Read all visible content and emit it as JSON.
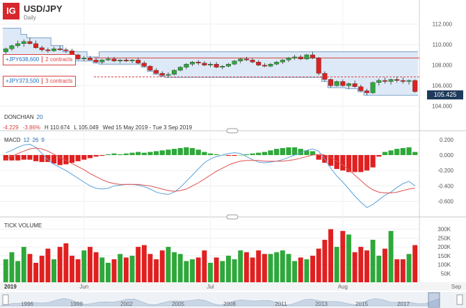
{
  "header": {
    "logo": "IG",
    "symbol": "USD/JPY",
    "timeframe": "Daily"
  },
  "positions": [
    {
      "value": "+JPY638,600",
      "contracts": "2 contracts"
    },
    {
      "value": "+JPY373,500",
      "contracts": "3 contracts"
    }
  ],
  "last_price": "105.425",
  "indicators": {
    "donchian": {
      "name": "DONCHIAN",
      "period": "20",
      "change": "-4.229",
      "change_pct": "-3.86%",
      "high": "H 110.674",
      "low": "L 105.049",
      "range": "Wed 15 May 2019 - Tue 3 Sep 2019"
    },
    "macd": {
      "name": "MACD",
      "p1": "12",
      "p2": "26",
      "p3": "9"
    },
    "volume": {
      "name": "TICK VOLUME"
    }
  },
  "axes": {
    "price_ticks": [
      "112.000",
      "110.000",
      "108.000",
      "106.000",
      "104.000"
    ],
    "macd_ticks": [
      "0.200",
      "0.000",
      "-0.200",
      "-0.400",
      "-0.600"
    ],
    "volume_ticks": [
      "300K",
      "250K",
      "200K",
      "150K",
      "100K",
      "50K"
    ],
    "time_labels": [
      "2019",
      "Jun",
      "Jul",
      "Aug",
      "Sep"
    ],
    "navigator_years": [
      "1996",
      "1999",
      "2002",
      "2005",
      "2008",
      "2011",
      "2013",
      "2015",
      "2017"
    ]
  },
  "colors": {
    "up": "#2ea83a",
    "down": "#e02020",
    "band_fill": "#dde9f6",
    "band_line": "#7aa0c8",
    "macd_line": "#5aa0d8",
    "signal_line": "#e05050",
    "position_line": "#d94040",
    "last_price_bg": "#1e3a5c"
  },
  "chart_data": [
    {
      "type": "candlestick",
      "title": "USD/JPY",
      "x": [
        "2019-05-15",
        "2019-09-03"
      ],
      "ylim": [
        103.5,
        113.0
      ],
      "ohlc": [
        [
          109.3,
          109.7,
          109.1,
          109.6
        ],
        [
          109.6,
          110.0,
          109.4,
          109.9
        ],
        [
          109.9,
          110.4,
          109.7,
          110.1
        ],
        [
          110.1,
          110.5,
          109.8,
          110.3
        ],
        [
          110.3,
          110.67,
          110.0,
          110.1
        ],
        [
          110.1,
          110.4,
          109.6,
          109.7
        ],
        [
          109.7,
          109.9,
          109.3,
          109.5
        ],
        [
          109.5,
          109.7,
          109.2,
          109.4
        ],
        [
          109.4,
          109.8,
          109.3,
          109.6
        ],
        [
          109.6,
          109.9,
          109.4,
          109.5
        ],
        [
          109.5,
          109.7,
          109.2,
          109.4
        ],
        [
          109.4,
          109.6,
          108.9,
          109.0
        ],
        [
          109.0,
          109.1,
          108.5,
          108.6
        ],
        [
          108.6,
          108.9,
          108.4,
          108.7
        ],
        [
          108.7,
          108.9,
          108.5,
          108.5
        ],
        [
          108.5,
          108.7,
          108.2,
          108.3
        ],
        [
          108.3,
          108.6,
          108.1,
          108.5
        ],
        [
          108.5,
          108.8,
          108.4,
          108.6
        ],
        [
          108.6,
          108.8,
          108.3,
          108.4
        ],
        [
          108.4,
          108.6,
          108.2,
          108.5
        ],
        [
          108.5,
          108.7,
          108.3,
          108.4
        ],
        [
          108.4,
          108.6,
          108.2,
          108.5
        ],
        [
          108.5,
          108.7,
          108.1,
          108.2
        ],
        [
          108.2,
          108.4,
          107.8,
          107.9
        ],
        [
          107.9,
          108.0,
          107.4,
          107.5
        ],
        [
          107.5,
          107.7,
          107.1,
          107.2
        ],
        [
          107.2,
          107.4,
          106.9,
          107.0
        ],
        [
          107.0,
          107.3,
          106.8,
          107.1
        ],
        [
          107.1,
          107.6,
          107.0,
          107.5
        ],
        [
          107.5,
          107.9,
          107.4,
          107.8
        ],
        [
          107.8,
          108.2,
          107.6,
          108.1
        ],
        [
          108.1,
          108.4,
          107.9,
          108.3
        ],
        [
          108.3,
          108.5,
          108.0,
          108.2
        ],
        [
          108.2,
          108.4,
          107.9,
          108.0
        ],
        [
          108.0,
          108.3,
          107.8,
          108.1
        ],
        [
          108.1,
          108.3,
          107.7,
          107.8
        ],
        [
          107.8,
          108.0,
          107.6,
          107.9
        ],
        [
          107.9,
          108.2,
          107.8,
          108.1
        ],
        [
          108.1,
          108.5,
          108.0,
          108.4
        ],
        [
          108.4,
          108.7,
          108.2,
          108.6
        ],
        [
          108.6,
          108.8,
          108.4,
          108.5
        ],
        [
          108.5,
          108.7,
          108.2,
          108.3
        ],
        [
          108.3,
          108.5,
          107.9,
          108.0
        ],
        [
          108.0,
          108.2,
          107.8,
          107.9
        ],
        [
          107.9,
          108.2,
          107.8,
          108.1
        ],
        [
          108.1,
          108.4,
          108.0,
          108.3
        ],
        [
          108.3,
          108.6,
          108.1,
          108.5
        ],
        [
          108.5,
          108.8,
          108.3,
          108.7
        ],
        [
          108.7,
          109.0,
          108.5,
          108.8
        ],
        [
          108.8,
          109.0,
          108.5,
          108.6
        ],
        [
          108.6,
          109.1,
          108.5,
          109.0
        ],
        [
          109.0,
          109.3,
          108.6,
          108.7
        ],
        [
          108.7,
          108.8,
          107.0,
          107.2
        ],
        [
          107.2,
          107.4,
          106.4,
          106.6
        ],
        [
          106.6,
          106.7,
          105.8,
          106.0
        ],
        [
          106.0,
          106.5,
          105.9,
          106.4
        ],
        [
          106.4,
          106.6,
          105.9,
          106.0
        ],
        [
          106.0,
          106.3,
          105.7,
          106.2
        ],
        [
          106.2,
          106.5,
          105.8,
          105.9
        ],
        [
          105.9,
          106.1,
          105.4,
          105.5
        ],
        [
          105.5,
          105.7,
          105.05,
          105.3
        ],
        [
          105.3,
          106.4,
          105.2,
          106.3
        ],
        [
          106.3,
          106.7,
          106.0,
          106.5
        ],
        [
          106.5,
          106.8,
          106.2,
          106.4
        ],
        [
          106.4,
          106.7,
          106.1,
          106.6
        ],
        [
          106.6,
          106.9,
          106.3,
          106.5
        ],
        [
          106.5,
          106.8,
          106.2,
          106.4
        ],
        [
          106.4,
          106.6,
          106.1,
          106.5
        ],
        [
          106.5,
          106.6,
          105.3,
          105.425
        ]
      ],
      "donchian": {
        "upper": [
          111.6,
          111.6,
          111.6,
          111.0,
          110.67,
          110.67,
          110.67,
          110.67,
          109.9,
          109.9,
          109.3,
          109.3,
          109.3,
          109.3,
          108.8,
          108.8,
          109.3,
          109.3,
          109.3,
          109.3,
          109.3,
          109.3,
          109.3,
          109.3,
          109.3,
          109.3,
          109.3,
          109.3,
          109.3,
          109.3,
          109.3,
          109.3,
          109.3,
          109.3,
          109.3,
          109.3,
          109.3,
          109.3,
          109.3,
          109.3,
          109.3,
          109.3,
          109.3,
          109.3,
          109.3,
          109.3,
          109.3,
          109.3,
          109.3,
          109.3,
          109.3,
          109.3,
          109.3,
          109.3,
          109.3,
          109.3,
          109.3,
          109.3,
          109.3,
          109.3,
          109.3,
          109.3,
          109.3,
          109.3,
          109.3,
          109.3,
          109.3,
          109.3,
          109.3
        ],
        "lower": [
          109.0,
          109.0,
          109.0,
          109.0,
          109.0,
          109.0,
          109.0,
          109.0,
          109.0,
          109.0,
          108.9,
          108.5,
          108.4,
          108.4,
          108.4,
          108.2,
          108.1,
          108.1,
          108.1,
          108.1,
          108.1,
          108.1,
          108.1,
          107.8,
          107.4,
          107.1,
          106.9,
          106.8,
          106.8,
          106.8,
          106.8,
          106.8,
          106.8,
          106.8,
          106.8,
          106.8,
          106.8,
          106.8,
          106.8,
          106.8,
          106.8,
          106.8,
          106.8,
          106.8,
          106.8,
          106.8,
          106.8,
          106.8,
          106.8,
          106.8,
          106.8,
          106.8,
          106.8,
          106.4,
          105.8,
          105.8,
          105.8,
          105.7,
          105.7,
          105.4,
          105.05,
          105.05,
          105.05,
          105.05,
          105.05,
          105.05,
          105.05,
          105.05,
          105.05
        ]
      },
      "position_levels": [
        108.7,
        106.85
      ]
    },
    {
      "type": "line",
      "title": "MACD 12 26 9",
      "ylim": [
        -0.72,
        0.27
      ],
      "series": [
        {
          "name": "MACD",
          "values": [
            0.03,
            0.06,
            0.1,
            0.13,
            0.14,
            0.1,
            0.02,
            -0.06,
            -0.12,
            -0.16,
            -0.2,
            -0.25,
            -0.3,
            -0.35,
            -0.4,
            -0.43,
            -0.44,
            -0.43,
            -0.4,
            -0.39,
            -0.38,
            -0.38,
            -0.39,
            -0.41,
            -0.44,
            -0.48,
            -0.5,
            -0.51,
            -0.48,
            -0.42,
            -0.34,
            -0.26,
            -0.18,
            -0.1,
            -0.05,
            -0.02,
            0.0,
            0.02,
            0.03,
            0.02,
            -0.02,
            -0.06,
            -0.09,
            -0.1,
            -0.09,
            -0.08,
            -0.06,
            -0.03,
            0.0,
            0.03,
            0.06,
            0.08,
            0.05,
            -0.05,
            -0.17,
            -0.27,
            -0.35,
            -0.44,
            -0.53,
            -0.61,
            -0.68,
            -0.64,
            -0.58,
            -0.52,
            -0.48,
            -0.42,
            -0.37,
            -0.34,
            -0.4
          ]
        },
        {
          "name": "Signal",
          "values": [
            -0.05,
            -0.02,
            0.02,
            0.05,
            0.08,
            0.09,
            0.08,
            0.05,
            0.01,
            -0.03,
            -0.07,
            -0.11,
            -0.15,
            -0.19,
            -0.24,
            -0.28,
            -0.32,
            -0.35,
            -0.37,
            -0.38,
            -0.38,
            -0.38,
            -0.38,
            -0.39,
            -0.4,
            -0.42,
            -0.44,
            -0.46,
            -0.47,
            -0.46,
            -0.44,
            -0.4,
            -0.36,
            -0.31,
            -0.26,
            -0.21,
            -0.17,
            -0.13,
            -0.1,
            -0.08,
            -0.07,
            -0.07,
            -0.07,
            -0.08,
            -0.08,
            -0.08,
            -0.08,
            -0.07,
            -0.06,
            -0.04,
            -0.02,
            0.0,
            0.01,
            0.0,
            -0.03,
            -0.08,
            -0.13,
            -0.19,
            -0.26,
            -0.33,
            -0.4,
            -0.45,
            -0.48,
            -0.49,
            -0.49,
            -0.48,
            -0.46,
            -0.44,
            -0.43
          ]
        },
        {
          "name": "Histogram",
          "values": [
            -0.07,
            -0.07,
            -0.07,
            -0.06,
            -0.06,
            -0.08,
            -0.09,
            -0.09,
            -0.11,
            -0.13,
            -0.12,
            -0.1,
            -0.08,
            -0.06,
            -0.04,
            -0.02,
            -0.01,
            0.01,
            0.02,
            0.01,
            0.02,
            0.03,
            0.04,
            0.03,
            0.04,
            0.05,
            0.06,
            0.07,
            0.08,
            0.09,
            0.1,
            0.09,
            0.07,
            0.04,
            0.02,
            0.01,
            0.0,
            -0.01,
            -0.01,
            0.0,
            0.01,
            0.02,
            0.03,
            0.04,
            0.06,
            0.08,
            0.09,
            0.1,
            0.1,
            0.08,
            0.06,
            0.05,
            -0.06,
            -0.1,
            -0.14,
            -0.18,
            -0.2,
            -0.22,
            -0.22,
            -0.22,
            -0.2,
            -0.16,
            -0.02,
            0.04,
            0.06,
            0.08,
            0.09,
            0.1,
            0.04
          ]
        }
      ]
    },
    {
      "type": "bar",
      "title": "TICK VOLUME",
      "ylim": [
        0,
        330000
      ],
      "values": [
        130000,
        170000,
        120000,
        200000,
        160000,
        110000,
        150000,
        190000,
        130000,
        200000,
        220000,
        150000,
        130000,
        180000,
        200000,
        170000,
        140000,
        110000,
        130000,
        160000,
        140000,
        150000,
        200000,
        210000,
        160000,
        130000,
        180000,
        200000,
        170000,
        160000,
        120000,
        130000,
        140000,
        180000,
        110000,
        140000,
        120000,
        150000,
        130000,
        180000,
        170000,
        140000,
        180000,
        160000,
        160000,
        170000,
        180000,
        160000,
        120000,
        140000,
        130000,
        150000,
        190000,
        240000,
        300000,
        200000,
        290000,
        270000,
        170000,
        200000,
        180000,
        240000,
        150000,
        190000,
        290000,
        130000,
        130000,
        160000,
        210000
      ]
    }
  ]
}
